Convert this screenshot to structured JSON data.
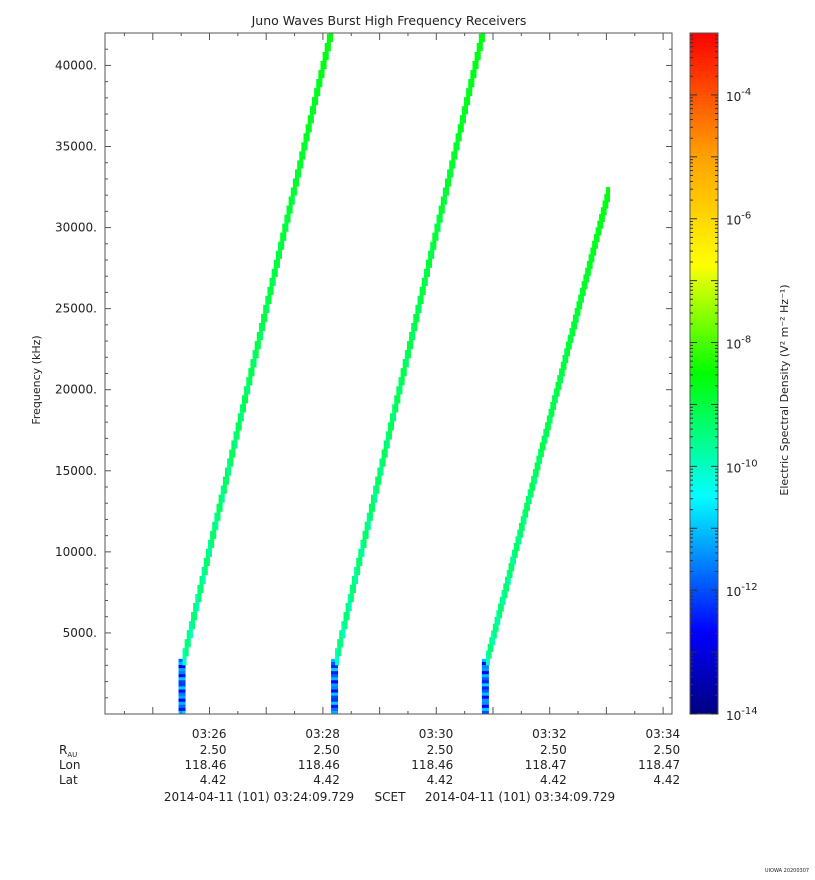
{
  "chart_data": {
    "type": "heatmap",
    "title": "Juno Waves Burst High Frequency Receivers",
    "ylabel": "Frequency (kHz)",
    "ylim": [
      0,
      42000
    ],
    "y_ticks": [
      {
        "value": 5000,
        "label": "5000."
      },
      {
        "value": 10000,
        "label": "10000."
      },
      {
        "value": 15000,
        "label": "15000."
      },
      {
        "value": 20000,
        "label": "20000."
      },
      {
        "value": 25000,
        "label": "25000."
      },
      {
        "value": 30000,
        "label": "30000."
      },
      {
        "value": 35000,
        "label": "35000."
      },
      {
        "value": 40000,
        "label": "40000."
      }
    ],
    "x_range_minutes": [
      0,
      10
    ],
    "x_ticks": [
      {
        "minutes": 1.8432,
        "label": "03:26"
      },
      {
        "minutes": 3.8432,
        "label": "03:28"
      },
      {
        "minutes": 5.8432,
        "label": "03:30"
      },
      {
        "minutes": 7.8432,
        "label": "03:32"
      },
      {
        "minutes": 9.8432,
        "label": "03:34"
      }
    ],
    "colorbar": {
      "label": "Electric Spectral Density (V² m⁻² Hz⁻¹)",
      "log_range": [
        -14,
        -3
      ],
      "ticks": [
        {
          "exp": -14,
          "label": "10",
          "sup": "-14"
        },
        {
          "exp": -12,
          "label": "10",
          "sup": "-12"
        },
        {
          "exp": -10,
          "label": "10",
          "sup": "-10"
        },
        {
          "exp": -8,
          "label": "10",
          "sup": "-8"
        },
        {
          "exp": -6,
          "label": "10",
          "sup": "-6"
        },
        {
          "exp": -4,
          "label": "10",
          "sup": "-4"
        }
      ]
    },
    "sweeps": [
      {
        "start_min": 1.35,
        "end_min": 3.97,
        "f_start": 3000,
        "f_end": 42000,
        "log_density": -9.5
      },
      {
        "start_min": 4.04,
        "end_min": 6.65,
        "f_start": 3000,
        "f_end": 42000,
        "log_density": -9.5
      },
      {
        "start_min": 6.7,
        "end_min": 8.85,
        "f_start": 3000,
        "f_end": 32000,
        "log_density": -9.5
      }
    ],
    "low_band_columns": [
      {
        "min": 1.35,
        "f_max": 3400
      },
      {
        "min": 4.04,
        "f_max": 3400
      },
      {
        "min": 6.7,
        "f_max": 3400
      }
    ]
  },
  "ephemeris": {
    "rows": [
      {
        "label": "R",
        "sub": "AU",
        "values": [
          "2.50",
          "2.50",
          "2.50",
          "2.50",
          "2.50"
        ]
      },
      {
        "label": "Lon",
        "sub": "",
        "values": [
          "118.46",
          "118.46",
          "118.46",
          "118.47",
          "118.47"
        ]
      },
      {
        "label": "Lat",
        "sub": "",
        "values": [
          "4.42",
          "4.42",
          "4.42",
          "4.42",
          "4.42"
        ]
      }
    ]
  },
  "time_range": {
    "start": "2014-04-11 (101) 03:24:09.729",
    "frame": "SCET",
    "end": "2014-04-11 (101) 03:34:09.729"
  },
  "stamp": "UIOWA 20200307"
}
